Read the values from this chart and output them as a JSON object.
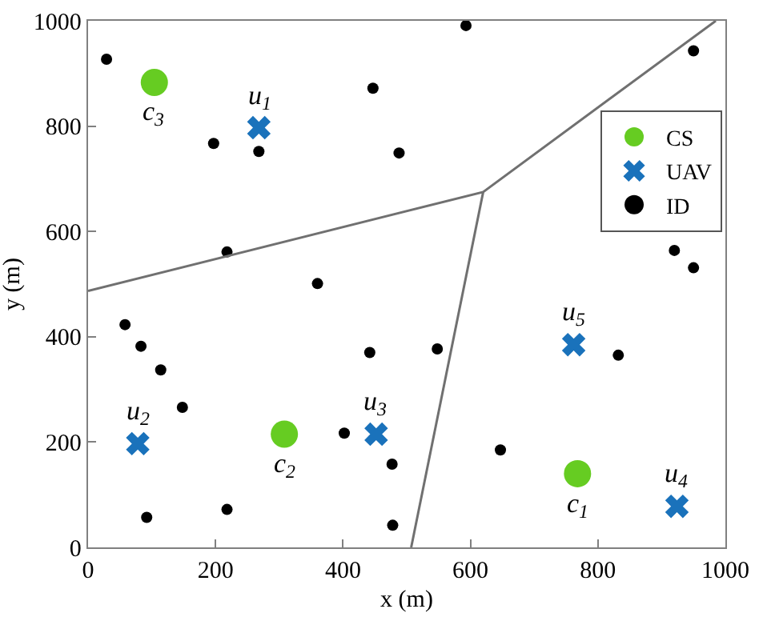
{
  "chart_data": {
    "type": "scatter",
    "xlabel": "x (m)",
    "ylabel": "y (m)",
    "xlim": [
      0,
      1000
    ],
    "ylim": [
      0,
      1000
    ],
    "xticks": [
      0,
      200,
      400,
      600,
      800,
      1000
    ],
    "yticks": [
      0,
      200,
      400,
      600,
      800,
      1000
    ],
    "legend": "top right",
    "series": [
      {
        "name": "CS",
        "color": "#66cc22",
        "marker": "circle",
        "x": [
          768,
          308,
          104
        ],
        "values": [
          140,
          215,
          883
        ]
      },
      {
        "name": "UAV",
        "color": "#1a72bb",
        "marker": "cross",
        "x": [
          268,
          78,
          452,
          924,
          762
        ],
        "values": [
          797,
          197,
          215,
          78,
          385
        ]
      },
      {
        "name": "ID",
        "color": "#000000",
        "marker": "circle",
        "x": [
          29,
          197,
          268,
          447,
          488,
          218,
          360,
          593,
          950,
          920,
          950,
          58,
          83,
          114,
          148,
          402,
          442,
          477,
          92,
          218,
          478,
          548,
          832,
          647
        ],
        "values": [
          927,
          767,
          752,
          872,
          749,
          561,
          501,
          991,
          943,
          564,
          531,
          423,
          382,
          337,
          266,
          217,
          370,
          158,
          57,
          72,
          42,
          377,
          365,
          185
        ]
      },
      {
        "type": "line",
        "color": "#707070",
        "marker": "none",
        "x": [
          0,
          620,
          985
        ],
        "values": [
          487,
          675,
          1000
        ]
      },
      {
        "type": "line",
        "color": "#707070",
        "marker": "none",
        "x": [
          620,
          507
        ],
        "values": [
          675,
          0
        ]
      }
    ],
    "annotations": [
      {
        "text": "c$_{1}$",
        "x": 768,
        "y": 140
      },
      {
        "text": "c$_{2}$",
        "x": 308,
        "y": 215
      },
      {
        "text": "c$_{3}$",
        "x": 104,
        "y": 883
      },
      {
        "text": "u$_{1}$",
        "x": 268,
        "y": 797
      },
      {
        "text": "u$_{2}$",
        "x": 78,
        "y": 197
      },
      {
        "text": "u$_{3}$",
        "x": 452,
        "y": 215
      },
      {
        "text": "u$_{4}$",
        "x": 924,
        "y": 78
      },
      {
        "text": "u$_{5}$",
        "x": 762,
        "y": 385
      }
    ]
  }
}
